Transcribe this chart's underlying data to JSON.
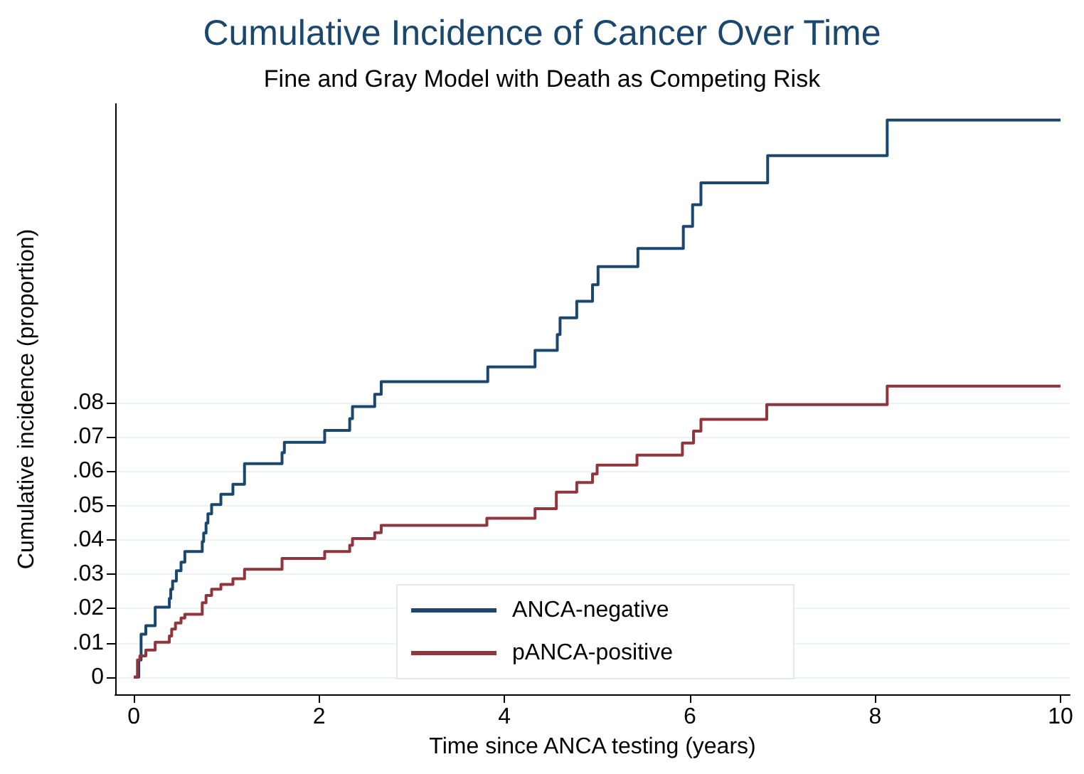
{
  "chart_data": {
    "type": "step",
    "title": "Cumulative Incidence of Cancer Over Time",
    "subtitle": "Fine and Gray Model with Death as Competing Risk",
    "xlabel": "Time since ANCA testing (years)",
    "ylabel": "Cumulative incidence (proportion)",
    "xlim": [
      -0.2,
      10.1
    ],
    "xticks": [
      0,
      2,
      4,
      6,
      8,
      10
    ],
    "ylim": [
      -0.005,
      0.167
    ],
    "yticks": [
      0,
      {
        "value": 0.01,
        "label": ".01"
      },
      {
        "value": 0.02,
        "label": ".02"
      },
      {
        "value": 0.03,
        "label": ".03"
      },
      {
        "value": 0.04,
        "label": ".04"
      },
      {
        "value": 0.05,
        "label": ".05"
      },
      {
        "value": 0.06,
        "label": ".06"
      },
      {
        "value": 0.07,
        "label": ".07"
      },
      {
        "value": 0.08,
        "label": ".08"
      }
    ],
    "grid": "y",
    "legend": "bottom",
    "line_style": "solid",
    "marker": "none",
    "series": [
      {
        "name": "ANCA-negative",
        "color": "#1a476f",
        "x": [
          0,
          0.054,
          0.079,
          0.13,
          0.231,
          0.384,
          0.399,
          0.419,
          0.46,
          0.51,
          0.551,
          0.739,
          0.754,
          0.78,
          0.8,
          0.84,
          0.94,
          1.07,
          1.195,
          1.6,
          1.625,
          2.06,
          2.33,
          2.36,
          2.6,
          2.67,
          3.82,
          4.33,
          4.57,
          4.6,
          4.78,
          4.95,
          5.01,
          5.44,
          5.93,
          6.03,
          6.12,
          6.84,
          8.13,
          10
        ],
        "values": [
          0,
          0.005,
          0.0125,
          0.015,
          0.0204,
          0.0229,
          0.0256,
          0.028,
          0.031,
          0.0335,
          0.0366,
          0.0395,
          0.042,
          0.0449,
          0.0476,
          0.0503,
          0.0533,
          0.0562,
          0.0622,
          0.0654,
          0.0684,
          0.0719,
          0.0753,
          0.0788,
          0.0824,
          0.0861,
          0.0904,
          0.0952,
          0.0998,
          0.1047,
          0.1095,
          0.1143,
          0.1196,
          0.1249,
          0.1313,
          0.1376,
          0.144,
          0.1519,
          0.1623,
          0.1623
        ]
      },
      {
        "name": "pANCA-positive",
        "color": "#90353b",
        "x": [
          0,
          0.04,
          0.066,
          0.13,
          0.231,
          0.384,
          0.409,
          0.45,
          0.51,
          0.551,
          0.739,
          0.78,
          0.84,
          0.94,
          1.07,
          1.195,
          1.6,
          2.06,
          2.33,
          2.36,
          2.6,
          2.67,
          3.81,
          4.33,
          4.56,
          4.78,
          4.95,
          5.0,
          5.43,
          5.92,
          6.04,
          6.12,
          6.83,
          8.13,
          10
        ],
        "values": [
          0,
          0.005,
          0.0062,
          0.0079,
          0.0102,
          0.012,
          0.014,
          0.0158,
          0.0172,
          0.0183,
          0.0217,
          0.0238,
          0.0256,
          0.027,
          0.0287,
          0.0314,
          0.0346,
          0.0366,
          0.0384,
          0.0404,
          0.0421,
          0.0442,
          0.0463,
          0.0491,
          0.0539,
          0.0567,
          0.0592,
          0.0618,
          0.0647,
          0.0682,
          0.0717,
          0.0751,
          0.0794,
          0.0848,
          0.0848
        ]
      }
    ]
  }
}
